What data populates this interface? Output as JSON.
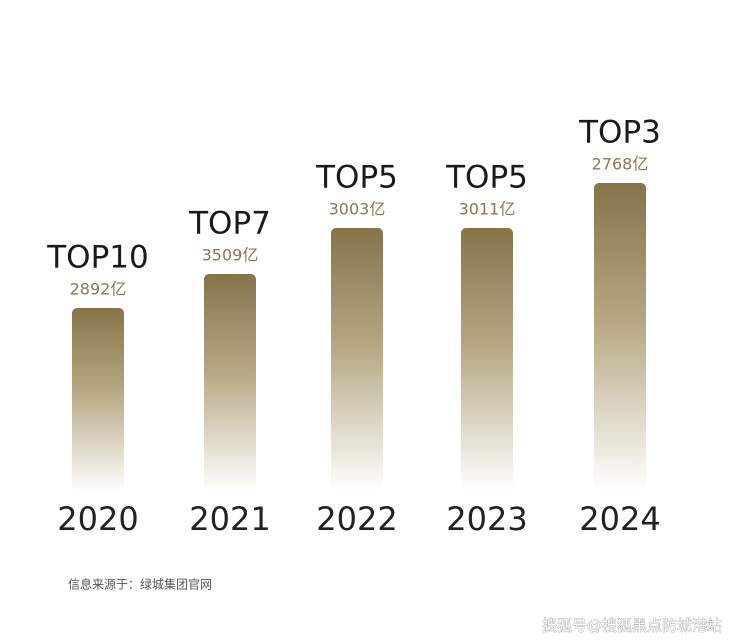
{
  "chart_data": {
    "type": "bar",
    "categories": [
      "2020",
      "2021",
      "2022",
      "2023",
      "2024"
    ],
    "rank_labels": [
      "TOP10",
      "TOP7",
      "TOP5",
      "TOP5",
      "TOP3"
    ],
    "values": [
      2892,
      3509,
      3003,
      3011,
      2768
    ],
    "value_labels": [
      "2892亿",
      "3509亿",
      "3003亿",
      "3011亿",
      "2768亿"
    ]
  },
  "source": "信息来源于：绿城集团官网",
  "watermark": "搜狐号@搜狐黑点防城港站"
}
